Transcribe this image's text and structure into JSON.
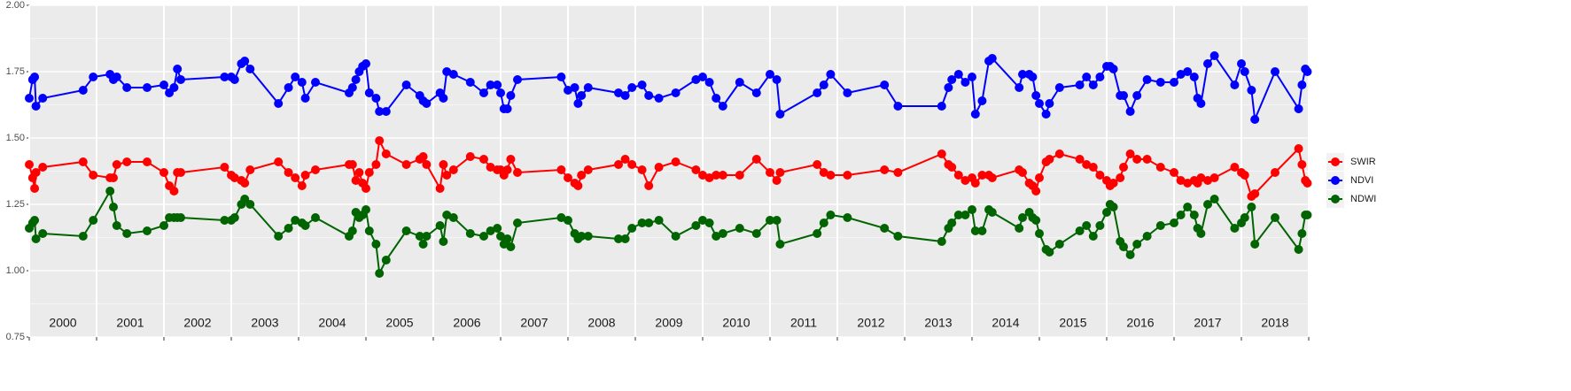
{
  "chart_data": {
    "type": "line",
    "x": [
      2000.0,
      2000.05,
      2000.08,
      2000.1,
      2000.2,
      2000.8,
      2000.95,
      2001.2,
      2001.25,
      2001.3,
      2001.45,
      2001.75,
      2002.0,
      2002.08,
      2002.15,
      2002.2,
      2002.25,
      2002.9,
      2003.0,
      2003.05,
      2003.15,
      2003.2,
      2003.28,
      2003.7,
      2003.85,
      2003.95,
      2004.05,
      2004.1,
      2004.25,
      2004.75,
      2004.8,
      2004.85,
      2004.9,
      2004.95,
      2005.0,
      2005.05,
      2005.15,
      2005.2,
      2005.3,
      2005.6,
      2005.8,
      2005.85,
      2005.9,
      2006.1,
      2006.15,
      2006.2,
      2006.3,
      2006.55,
      2006.75,
      2006.85,
      2006.95,
      2007.0,
      2007.05,
      2007.1,
      2007.15,
      2007.25,
      2007.9,
      2008.0,
      2008.1,
      2008.15,
      2008.2,
      2008.3,
      2008.75,
      2008.85,
      2008.95,
      2009.1,
      2009.2,
      2009.35,
      2009.6,
      2009.9,
      2010.0,
      2010.1,
      2010.2,
      2010.3,
      2010.55,
      2010.8,
      2011.0,
      2011.1,
      2011.15,
      2011.7,
      2011.8,
      2011.9,
      2012.15,
      2012.7,
      2012.9,
      2013.55,
      2013.65,
      2013.7,
      2013.8,
      2013.9,
      2014.0,
      2014.05,
      2014.15,
      2014.25,
      2014.3,
      2014.7,
      2014.75,
      2014.85,
      2014.9,
      2014.95,
      2015.0,
      2015.1,
      2015.15,
      2015.3,
      2015.6,
      2015.7,
      2015.8,
      2015.9,
      2016.0,
      2016.05,
      2016.1,
      2016.2,
      2016.25,
      2016.35,
      2016.45,
      2016.6,
      2016.8,
      2017.0,
      2017.1,
      2017.2,
      2017.3,
      2017.35,
      2017.4,
      2017.5,
      2017.6,
      2017.9,
      2018.0,
      2018.05,
      2018.15,
      2018.2,
      2018.5,
      2018.85,
      2018.9,
      2018.95,
      2018.98
    ],
    "series": [
      {
        "name": "SWIR",
        "color": "#ff0000",
        "values": [
          1.4,
          1.35,
          1.31,
          1.37,
          1.39,
          1.41,
          1.36,
          1.35,
          1.35,
          1.4,
          1.41,
          1.41,
          1.37,
          1.32,
          1.3,
          1.37,
          1.37,
          1.39,
          1.36,
          1.35,
          1.34,
          1.33,
          1.38,
          1.41,
          1.37,
          1.35,
          1.32,
          1.36,
          1.38,
          1.4,
          1.4,
          1.34,
          1.37,
          1.33,
          1.31,
          1.37,
          1.4,
          1.49,
          1.44,
          1.4,
          1.42,
          1.43,
          1.4,
          1.31,
          1.4,
          1.36,
          1.38,
          1.43,
          1.42,
          1.39,
          1.38,
          1.38,
          1.36,
          1.38,
          1.42,
          1.37,
          1.38,
          1.35,
          1.33,
          1.32,
          1.36,
          1.38,
          1.4,
          1.42,
          1.4,
          1.38,
          1.32,
          1.39,
          1.41,
          1.38,
          1.36,
          1.35,
          1.36,
          1.36,
          1.36,
          1.42,
          1.37,
          1.34,
          1.37,
          1.4,
          1.37,
          1.36,
          1.36,
          1.38,
          1.37,
          1.44,
          1.4,
          1.39,
          1.36,
          1.34,
          1.35,
          1.33,
          1.36,
          1.36,
          1.35,
          1.38,
          1.37,
          1.33,
          1.32,
          1.3,
          1.35,
          1.41,
          1.42,
          1.44,
          1.42,
          1.4,
          1.39,
          1.36,
          1.34,
          1.32,
          1.33,
          1.35,
          1.39,
          1.44,
          1.42,
          1.42,
          1.39,
          1.37,
          1.34,
          1.33,
          1.34,
          1.33,
          1.35,
          1.34,
          1.35,
          1.39,
          1.37,
          1.36,
          1.28,
          1.29,
          1.37,
          1.46,
          1.4,
          1.34,
          1.33
        ]
      },
      {
        "name": "NDVI",
        "color": "#0000ff",
        "values": [
          1.65,
          1.72,
          1.73,
          1.62,
          1.65,
          1.68,
          1.73,
          1.74,
          1.72,
          1.73,
          1.69,
          1.69,
          1.7,
          1.67,
          1.69,
          1.76,
          1.72,
          1.73,
          1.73,
          1.72,
          1.78,
          1.79,
          1.76,
          1.63,
          1.69,
          1.73,
          1.71,
          1.65,
          1.71,
          1.67,
          1.69,
          1.72,
          1.75,
          1.77,
          1.78,
          1.67,
          1.65,
          1.6,
          1.6,
          1.7,
          1.66,
          1.64,
          1.63,
          1.67,
          1.65,
          1.75,
          1.74,
          1.71,
          1.67,
          1.7,
          1.7,
          1.67,
          1.61,
          1.61,
          1.66,
          1.72,
          1.73,
          1.68,
          1.69,
          1.63,
          1.66,
          1.69,
          1.67,
          1.66,
          1.69,
          1.7,
          1.66,
          1.65,
          1.67,
          1.72,
          1.73,
          1.71,
          1.65,
          1.62,
          1.71,
          1.67,
          1.74,
          1.72,
          1.59,
          1.67,
          1.7,
          1.74,
          1.67,
          1.7,
          1.62,
          1.62,
          1.69,
          1.72,
          1.74,
          1.71,
          1.73,
          1.59,
          1.64,
          1.79,
          1.8,
          1.69,
          1.74,
          1.74,
          1.73,
          1.66,
          1.63,
          1.59,
          1.63,
          1.69,
          1.7,
          1.73,
          1.7,
          1.73,
          1.77,
          1.77,
          1.76,
          1.66,
          1.66,
          1.6,
          1.66,
          1.72,
          1.71,
          1.71,
          1.74,
          1.75,
          1.73,
          1.65,
          1.63,
          1.78,
          1.81,
          1.7,
          1.78,
          1.75,
          1.68,
          1.57,
          1.75,
          1.61,
          1.7,
          1.76,
          1.75
        ]
      },
      {
        "name": "NDWI",
        "color": "#006400",
        "values": [
          1.16,
          1.18,
          1.19,
          1.12,
          1.14,
          1.13,
          1.19,
          1.3,
          1.24,
          1.17,
          1.14,
          1.15,
          1.17,
          1.2,
          1.2,
          1.2,
          1.2,
          1.19,
          1.19,
          1.2,
          1.25,
          1.27,
          1.25,
          1.13,
          1.16,
          1.19,
          1.18,
          1.17,
          1.2,
          1.13,
          1.15,
          1.22,
          1.2,
          1.21,
          1.23,
          1.15,
          1.1,
          0.99,
          1.04,
          1.15,
          1.13,
          1.1,
          1.13,
          1.17,
          1.11,
          1.21,
          1.2,
          1.14,
          1.13,
          1.15,
          1.16,
          1.13,
          1.1,
          1.12,
          1.09,
          1.18,
          1.2,
          1.19,
          1.14,
          1.12,
          1.13,
          1.13,
          1.12,
          1.12,
          1.16,
          1.18,
          1.18,
          1.19,
          1.13,
          1.17,
          1.19,
          1.18,
          1.13,
          1.14,
          1.16,
          1.14,
          1.19,
          1.19,
          1.1,
          1.14,
          1.18,
          1.21,
          1.2,
          1.16,
          1.13,
          1.11,
          1.16,
          1.18,
          1.21,
          1.21,
          1.23,
          1.15,
          1.15,
          1.23,
          1.22,
          1.16,
          1.2,
          1.22,
          1.2,
          1.19,
          1.14,
          1.08,
          1.07,
          1.1,
          1.15,
          1.17,
          1.13,
          1.17,
          1.22,
          1.25,
          1.24,
          1.11,
          1.09,
          1.06,
          1.1,
          1.13,
          1.17,
          1.18,
          1.21,
          1.24,
          1.21,
          1.16,
          1.14,
          1.25,
          1.27,
          1.16,
          1.18,
          1.2,
          1.24,
          1.1,
          1.2,
          1.08,
          1.14,
          1.21,
          1.21
        ]
      }
    ],
    "xlim": [
      2000,
      2019
    ],
    "xticks": [
      2000,
      2001,
      2002,
      2003,
      2004,
      2005,
      2006,
      2007,
      2008,
      2009,
      2010,
      2011,
      2012,
      2013,
      2014,
      2015,
      2016,
      2017,
      2018,
      2019
    ],
    "ylim": [
      0.75,
      2.0
    ],
    "yticks": [
      0.75,
      {
        "value": 1,
        "label": "1.00"
      },
      1.25,
      {
        "value": 1.5,
        "label": "1.50"
      },
      1.75,
      {
        "value": 2,
        "label": "2.00"
      }
    ],
    "annotations": [
      {
        "text": "2000",
        "x": 2000.5
      },
      {
        "text": "2001",
        "x": 2001.5
      },
      {
        "text": "2002",
        "x": 2002.5
      },
      {
        "text": "2003",
        "x": 2003.5
      },
      {
        "text": "2004",
        "x": 2004.5
      },
      {
        "text": "2005",
        "x": 2005.5
      },
      {
        "text": "2006",
        "x": 2006.5
      },
      {
        "text": "2007",
        "x": 2007.5
      },
      {
        "text": "2008",
        "x": 2008.5
      },
      {
        "text": "2009",
        "x": 2009.5
      },
      {
        "text": "2010",
        "x": 2010.5
      },
      {
        "text": "2011",
        "x": 2011.5
      },
      {
        "text": "2012",
        "x": 2012.5
      },
      {
        "text": "2013",
        "x": 2013.5
      },
      {
        "text": "2014",
        "x": 2014.5
      },
      {
        "text": "2015",
        "x": 2015.5
      },
      {
        "text": "2016",
        "x": 2016.5
      },
      {
        "text": "2017",
        "x": 2017.5
      },
      {
        "text": "2018",
        "x": 2018.5
      }
    ],
    "grid": true,
    "legend": "right"
  }
}
